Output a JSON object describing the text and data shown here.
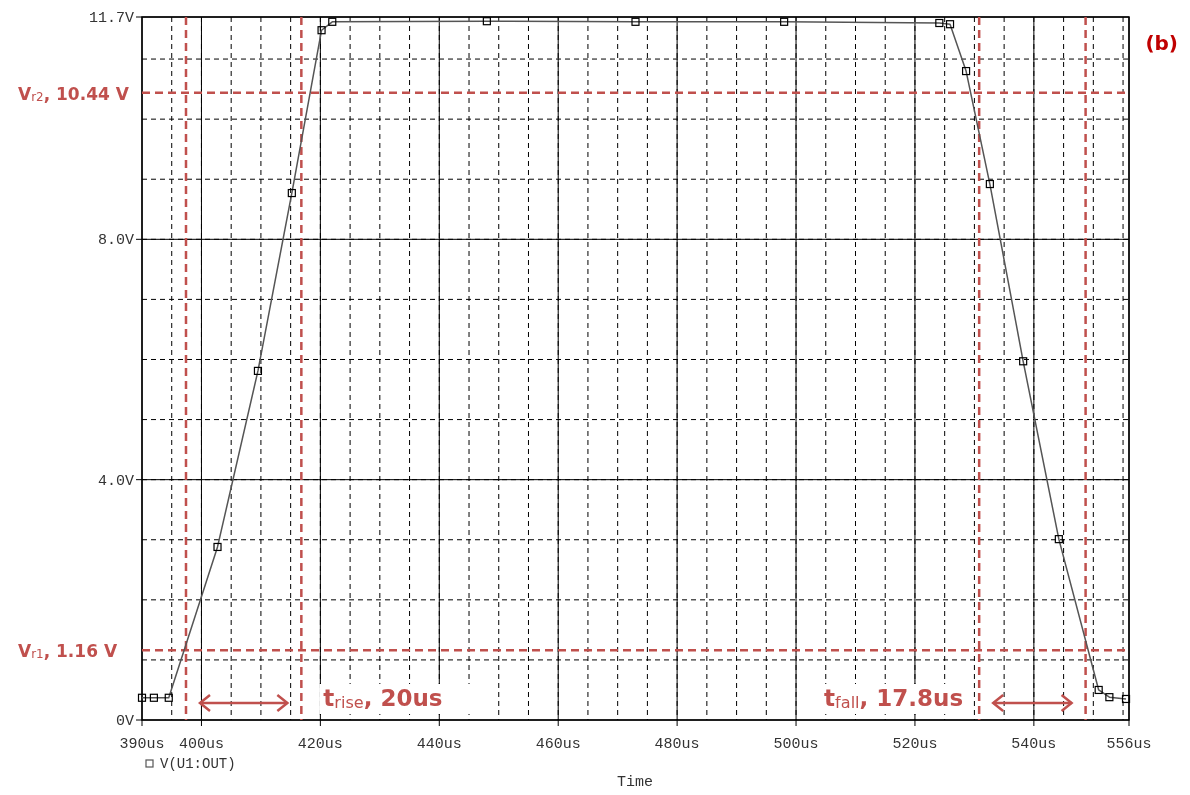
{
  "chart_data": {
    "type": "line",
    "xlabel": "Time",
    "x": [
      390,
      392,
      394.5,
      402.7,
      409.5,
      415.2,
      420.2,
      422,
      448,
      473,
      498,
      524.1,
      525.9,
      528.6,
      532.6,
      538.2,
      544.2,
      550.9,
      552.7,
      555.5
    ],
    "series": [
      {
        "name": "V(U1:OUT)",
        "color": "#555555",
        "values": [
          0.37,
          0.37,
          0.37,
          2.88,
          5.81,
          8.77,
          11.48,
          11.62,
          11.63,
          11.62,
          11.62,
          11.6,
          11.58,
          10.8,
          8.92,
          5.97,
          3.01,
          0.5,
          0.38,
          0.35
        ]
      }
    ],
    "xlim": [
      390,
      556
    ],
    "xticks": [
      {
        "value": 390,
        "label": "390us"
      },
      {
        "value": 400,
        "label": "400us"
      },
      {
        "value": 420,
        "label": "420us"
      },
      {
        "value": 440,
        "label": "440us"
      },
      {
        "value": 460,
        "label": "460us"
      },
      {
        "value": 480,
        "label": "480us"
      },
      {
        "value": 500,
        "label": "500us"
      },
      {
        "value": 520,
        "label": "520us"
      },
      {
        "value": 540,
        "label": "540us"
      },
      {
        "value": 556,
        "label": "556us"
      }
    ],
    "ylim": [
      0,
      11.7
    ],
    "yticks": [
      {
        "value": 0,
        "label": "0V"
      },
      {
        "value": 4,
        "label": "4.0V"
      },
      {
        "value": 8,
        "label": "8.0V"
      },
      {
        "value": 11.7,
        "label": "11.7V"
      }
    ],
    "grid": true,
    "marker": "square",
    "line_style": "solid",
    "legend": "bottom left",
    "ref_lines": [
      {
        "axis": "y",
        "value": 10.44,
        "label": "V$_{r2}$, 10.44 V",
        "color": "#c0504d",
        "line_style": "dashed"
      },
      {
        "axis": "y",
        "value": 1.16,
        "label": "V$_{r1}$, 1.16 V",
        "color": "#c0504d",
        "line_style": "dashed"
      },
      {
        "axis": "x",
        "value": 397.4,
        "color": "#c0504d",
        "line_style": "dashed"
      },
      {
        "axis": "x",
        "value": 416.8,
        "color": "#c0504d",
        "line_style": "dashed"
      },
      {
        "axis": "x",
        "value": 530.8,
        "color": "#c0504d",
        "line_style": "dashed"
      },
      {
        "axis": "x",
        "value": 548.7,
        "color": "#c0504d",
        "line_style": "dashed"
      }
    ],
    "annotations": [
      "t$_{rise}$, 20us",
      "t$_{fall}$, 17.8us",
      "(b)"
    ]
  }
}
